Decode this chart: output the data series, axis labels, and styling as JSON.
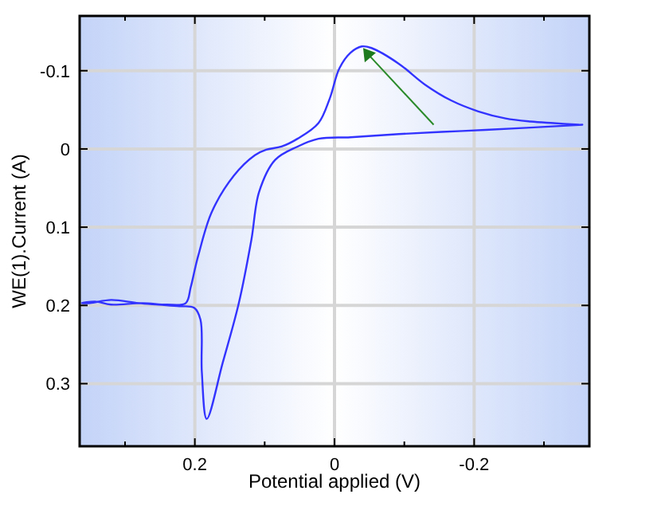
{
  "chart_data": {
    "type": "line",
    "xlabel": "Potential applied (V)",
    "ylabel": "WE(1).Current (A)",
    "xlim": [
      0.365,
      -0.365
    ],
    "ylim": [
      0.38,
      -0.17
    ],
    "xticks": [
      {
        "value": 0.3,
        "label": null
      },
      0.2,
      {
        "value": 0.1,
        "label": null
      },
      0,
      {
        "value": -0.1,
        "label": null
      },
      -0.2,
      {
        "value": -0.3,
        "label": null
      }
    ],
    "yticks": [
      -0.1,
      0,
      0.1,
      0.2,
      0.3
    ],
    "grid": true,
    "marker": "none",
    "line_style": "solid",
    "series": [
      {
        "color": "#3333ff",
        "x": [
          -0.355,
          -0.275,
          -0.183,
          -0.092,
          -0.023,
          0.023,
          0.053,
          0.085,
          0.108,
          0.119,
          0.137,
          0.16,
          0.183,
          0.19,
          0.192,
          0.201,
          0.222,
          0.252,
          0.281,
          0.32,
          0.35,
          0.362,
          0.343,
          0.32,
          0.275,
          0.24,
          0.213,
          0.206,
          0.199,
          0.195,
          0.176,
          0.144,
          0.114,
          0.098,
          0.076,
          0.053,
          0.023,
          0.007,
          -0.007,
          -0.023,
          -0.039,
          -0.053,
          -0.092,
          -0.13,
          -0.167,
          -0.206,
          -0.245,
          -0.281,
          -0.314,
          -0.35
        ],
        "values": [
          -0.031,
          -0.027,
          -0.023,
          -0.019,
          -0.015,
          -0.013,
          -0.003,
          0.014,
          0.055,
          0.116,
          0.197,
          0.273,
          0.345,
          0.285,
          0.218,
          0.203,
          0.201,
          0.199,
          0.197,
          0.193,
          0.197,
          0.197,
          0.195,
          0.199,
          0.197,
          0.199,
          0.197,
          0.177,
          0.15,
          0.136,
          0.081,
          0.034,
          0.008,
          0.001,
          -0.003,
          -0.013,
          -0.033,
          -0.064,
          -0.103,
          -0.123,
          -0.131,
          -0.129,
          -0.109,
          -0.082,
          -0.062,
          -0.048,
          -0.039,
          -0.035,
          -0.033,
          -0.031
        ]
      }
    ]
  }
}
